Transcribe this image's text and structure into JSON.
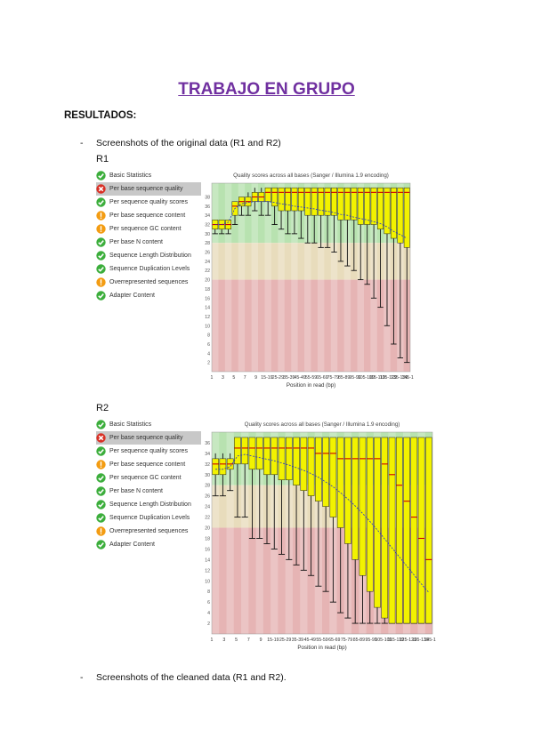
{
  "doc": {
    "title": "TRABAJO EN GRUPO",
    "heading": "RESULTADOS:",
    "bullet1": "Screenshots of the original data (R1 and R2)",
    "bullet2": "Screenshots of the cleaned data (R1 and R2).",
    "dash": "-"
  },
  "r1": {
    "label": "R1",
    "modules": [
      {
        "label": "Basic Statistics",
        "status": "pass"
      },
      {
        "label": "Per base sequence quality",
        "status": "fail",
        "selected": true
      },
      {
        "label": "Per sequence quality scores",
        "status": "pass"
      },
      {
        "label": "Per base sequence content",
        "status": "warn"
      },
      {
        "label": "Per sequence GC content",
        "status": "warn"
      },
      {
        "label": "Per base N content",
        "status": "pass"
      },
      {
        "label": "Sequence Length Distribution",
        "status": "pass"
      },
      {
        "label": "Sequence Duplication Levels",
        "status": "pass"
      },
      {
        "label": "Overrepresented sequences",
        "status": "warn"
      },
      {
        "label": "Adapter Content",
        "status": "pass"
      }
    ]
  },
  "r2": {
    "label": "R2",
    "modules": [
      {
        "label": "Basic Statistics",
        "status": "pass"
      },
      {
        "label": "Per base sequence quality",
        "status": "fail",
        "selected": true
      },
      {
        "label": "Per sequence quality scores",
        "status": "pass"
      },
      {
        "label": "Per base sequence content",
        "status": "warn"
      },
      {
        "label": "Per sequence GC content",
        "status": "pass"
      },
      {
        "label": "Per base N content",
        "status": "pass"
      },
      {
        "label": "Sequence Length Distribution",
        "status": "pass"
      },
      {
        "label": "Sequence Duplication Levels",
        "status": "pass"
      },
      {
        "label": "Overrepresented sequences",
        "status": "warn"
      },
      {
        "label": "Adapter Content",
        "status": "pass"
      }
    ]
  },
  "colors": {
    "pass": "#3cae3c",
    "warn": "#f39c12",
    "fail": "#d93025",
    "zone_good": "#b8e2b0",
    "zone_mid": "#e8dcbc",
    "zone_bad": "#e6b4b4",
    "box": "#f2f200",
    "median": "#cc0000",
    "mean": "#2233cc"
  },
  "chart_data": [
    {
      "type": "box",
      "title": "Quality scores across all bases (Sanger / Illumina 1.9 encoding)",
      "xlabel": "Position in read (bp)",
      "ylim": [
        0,
        41
      ],
      "y_ticks": [
        2,
        4,
        6,
        8,
        10,
        12,
        14,
        16,
        18,
        20,
        22,
        24,
        26,
        28,
        30,
        32,
        34,
        36,
        38
      ],
      "x_ticks": [
        "1",
        "3",
        "5",
        "7",
        "9",
        "15-19",
        "25-29",
        "35-39",
        "45-49",
        "55-59",
        "65-69",
        "75-79",
        "85-89",
        "95-99",
        "105-109",
        "115-119",
        "125-129",
        "135-139",
        "145-150"
      ],
      "zones": [
        {
          "from": 28,
          "to": 41,
          "label": "good"
        },
        {
          "from": 20,
          "to": 28,
          "label": "reasonable"
        },
        {
          "from": 0,
          "to": 20,
          "label": "poor"
        }
      ],
      "boxes": [
        {
          "med": 32,
          "q1": 31,
          "q3": 33,
          "lo": 30,
          "hi": 33,
          "mean": 32
        },
        {
          "med": 32,
          "q1": 31,
          "q3": 33,
          "lo": 30,
          "hi": 33,
          "mean": 32
        },
        {
          "med": 32,
          "q1": 31,
          "q3": 33,
          "lo": 30,
          "hi": 33,
          "mean": 32.5
        },
        {
          "med": 36,
          "q1": 34,
          "q3": 37,
          "lo": 32,
          "hi": 37,
          "mean": 35.5
        },
        {
          "med": 37,
          "q1": 36,
          "q3": 38,
          "lo": 34,
          "hi": 38,
          "mean": 36.5
        },
        {
          "med": 37,
          "q1": 36,
          "q3": 38,
          "lo": 34,
          "hi": 39,
          "mean": 36.8
        },
        {
          "med": 38,
          "q1": 37,
          "q3": 39,
          "lo": 35,
          "hi": 40,
          "mean": 37
        },
        {
          "med": 38,
          "q1": 37,
          "q3": 39,
          "lo": 34,
          "hi": 40,
          "mean": 37
        },
        {
          "med": 39,
          "q1": 37,
          "q3": 40,
          "lo": 34,
          "hi": 40,
          "mean": 37
        },
        {
          "med": 39,
          "q1": 36,
          "q3": 40,
          "lo": 32,
          "hi": 40,
          "mean": 36.8
        },
        {
          "med": 39,
          "q1": 35,
          "q3": 40,
          "lo": 31,
          "hi": 40,
          "mean": 36.5
        },
        {
          "med": 39,
          "q1": 35,
          "q3": 40,
          "lo": 30,
          "hi": 40,
          "mean": 36.3
        },
        {
          "med": 39,
          "q1": 35,
          "q3": 40,
          "lo": 30,
          "hi": 40,
          "mean": 36
        },
        {
          "med": 39,
          "q1": 35,
          "q3": 40,
          "lo": 29,
          "hi": 40,
          "mean": 35.8
        },
        {
          "med": 39,
          "q1": 34,
          "q3": 40,
          "lo": 28,
          "hi": 40,
          "mean": 35.6
        },
        {
          "med": 39,
          "q1": 34,
          "q3": 40,
          "lo": 28,
          "hi": 40,
          "mean": 35.4
        },
        {
          "med": 39,
          "q1": 34,
          "q3": 40,
          "lo": 27,
          "hi": 40,
          "mean": 35.1
        },
        {
          "med": 39,
          "q1": 34,
          "q3": 40,
          "lo": 27,
          "hi": 40,
          "mean": 34.9
        },
        {
          "med": 39,
          "q1": 34,
          "q3": 40,
          "lo": 26,
          "hi": 40,
          "mean": 34.6
        },
        {
          "med": 39,
          "q1": 33,
          "q3": 40,
          "lo": 24,
          "hi": 40,
          "mean": 34.2
        },
        {
          "med": 39,
          "q1": 33,
          "q3": 40,
          "lo": 23,
          "hi": 40,
          "mean": 34
        },
        {
          "med": 39,
          "q1": 33,
          "q3": 40,
          "lo": 22,
          "hi": 40,
          "mean": 33.6
        },
        {
          "med": 39,
          "q1": 32,
          "q3": 40,
          "lo": 20,
          "hi": 40,
          "mean": 33.3
        },
        {
          "med": 39,
          "q1": 32,
          "q3": 40,
          "lo": 19,
          "hi": 40,
          "mean": 33
        },
        {
          "med": 39,
          "q1": 32,
          "q3": 40,
          "lo": 16,
          "hi": 40,
          "mean": 32.6
        },
        {
          "med": 39,
          "q1": 31,
          "q3": 40,
          "lo": 14,
          "hi": 40,
          "mean": 32.2
        },
        {
          "med": 39,
          "q1": 30,
          "q3": 40,
          "lo": 10,
          "hi": 40,
          "mean": 31.5
        },
        {
          "med": 39,
          "q1": 29,
          "q3": 40,
          "lo": 6,
          "hi": 40,
          "mean": 30.5
        },
        {
          "med": 39,
          "q1": 28,
          "q3": 40,
          "lo": 3,
          "hi": 40,
          "mean": 29.8
        },
        {
          "med": 39,
          "q1": 27,
          "q3": 40,
          "lo": 2,
          "hi": 40,
          "mean": 29
        }
      ]
    },
    {
      "type": "box",
      "title": "Quality scores across all bases (Sanger / Illumina 1.9 encoding)",
      "xlabel": "Position in read (bp)",
      "ylim": [
        0,
        38
      ],
      "y_ticks": [
        2,
        4,
        6,
        8,
        10,
        12,
        14,
        16,
        18,
        20,
        22,
        24,
        26,
        28,
        30,
        32,
        34,
        36
      ],
      "x_ticks": [
        "1",
        "3",
        "5",
        "7",
        "9",
        "15-19",
        "25-29",
        "35-39",
        "45-49",
        "55-59",
        "65-69",
        "75-79",
        "85-89",
        "95-99",
        "105-109",
        "115-119",
        "125-129",
        "135-139",
        "145-150"
      ],
      "zones": [
        {
          "from": 28,
          "to": 38,
          "label": "good"
        },
        {
          "from": 20,
          "to": 28,
          "label": "reasonable"
        },
        {
          "from": 0,
          "to": 20,
          "label": "poor"
        }
      ],
      "boxes": [
        {
          "med": 32,
          "q1": 30,
          "q3": 33,
          "lo": 26,
          "hi": 34,
          "mean": 31
        },
        {
          "med": 32,
          "q1": 30,
          "q3": 33,
          "lo": 26,
          "hi": 34,
          "mean": 31
        },
        {
          "med": 32,
          "q1": 31,
          "q3": 33,
          "lo": 27,
          "hi": 34,
          "mean": 31.5
        },
        {
          "med": 35,
          "q1": 32,
          "q3": 37,
          "lo": 22,
          "hi": 37,
          "mean": 33.5
        },
        {
          "med": 35,
          "q1": 32,
          "q3": 37,
          "lo": 22,
          "hi": 37,
          "mean": 33.8
        },
        {
          "med": 35,
          "q1": 31,
          "q3": 37,
          "lo": 18,
          "hi": 37,
          "mean": 33.5
        },
        {
          "med": 35,
          "q1": 31,
          "q3": 37,
          "lo": 18,
          "hi": 37,
          "mean": 33.2
        },
        {
          "med": 35,
          "q1": 30,
          "q3": 37,
          "lo": 17,
          "hi": 37,
          "mean": 32.9
        },
        {
          "med": 35,
          "q1": 30,
          "q3": 37,
          "lo": 16,
          "hi": 37,
          "mean": 32.6
        },
        {
          "med": 35,
          "q1": 29,
          "q3": 37,
          "lo": 15,
          "hi": 37,
          "mean": 32.2
        },
        {
          "med": 35,
          "q1": 29,
          "q3": 37,
          "lo": 14,
          "hi": 37,
          "mean": 31.8
        },
        {
          "med": 35,
          "q1": 28,
          "q3": 37,
          "lo": 13,
          "hi": 37,
          "mean": 31.3
        },
        {
          "med": 35,
          "q1": 27,
          "q3": 37,
          "lo": 12,
          "hi": 37,
          "mean": 30.8
        },
        {
          "med": 35,
          "q1": 26,
          "q3": 37,
          "lo": 11,
          "hi": 37,
          "mean": 30.2
        },
        {
          "med": 34,
          "q1": 25,
          "q3": 37,
          "lo": 9,
          "hi": 37,
          "mean": 29.5
        },
        {
          "med": 34,
          "q1": 24,
          "q3": 37,
          "lo": 8,
          "hi": 37,
          "mean": 28.6
        },
        {
          "med": 34,
          "q1": 22,
          "q3": 37,
          "lo": 6,
          "hi": 37,
          "mean": 27.7
        },
        {
          "med": 33,
          "q1": 20,
          "q3": 37,
          "lo": 4,
          "hi": 37,
          "mean": 26.6
        },
        {
          "med": 33,
          "q1": 17,
          "q3": 37,
          "lo": 3,
          "hi": 37,
          "mean": 25.4
        },
        {
          "med": 33,
          "q1": 14,
          "q3": 37,
          "lo": 2,
          "hi": 37,
          "mean": 24.1
        },
        {
          "med": 33,
          "q1": 11,
          "q3": 37,
          "lo": 2,
          "hi": 37,
          "mean": 22.7
        },
        {
          "med": 33,
          "q1": 8,
          "q3": 37,
          "lo": 2,
          "hi": 37,
          "mean": 21.2
        },
        {
          "med": 33,
          "q1": 5,
          "q3": 37,
          "lo": 2,
          "hi": 37,
          "mean": 19.6
        },
        {
          "med": 32,
          "q1": 3,
          "q3": 37,
          "lo": 2,
          "hi": 37,
          "mean": 17.9
        },
        {
          "med": 30,
          "q1": 2,
          "q3": 37,
          "lo": 2,
          "hi": 37,
          "mean": 16.2
        },
        {
          "med": 28,
          "q1": 2,
          "q3": 37,
          "lo": 2,
          "hi": 37,
          "mean": 14.5
        },
        {
          "med": 25,
          "q1": 2,
          "q3": 37,
          "lo": 2,
          "hi": 37,
          "mean": 12.8
        },
        {
          "med": 22,
          "q1": 2,
          "q3": 37,
          "lo": 2,
          "hi": 37,
          "mean": 11.1
        },
        {
          "med": 18,
          "q1": 2,
          "q3": 37,
          "lo": 2,
          "hi": 37,
          "mean": 9.4
        },
        {
          "med": 14,
          "q1": 2,
          "q3": 37,
          "lo": 2,
          "hi": 37,
          "mean": 7.8
        }
      ]
    }
  ]
}
